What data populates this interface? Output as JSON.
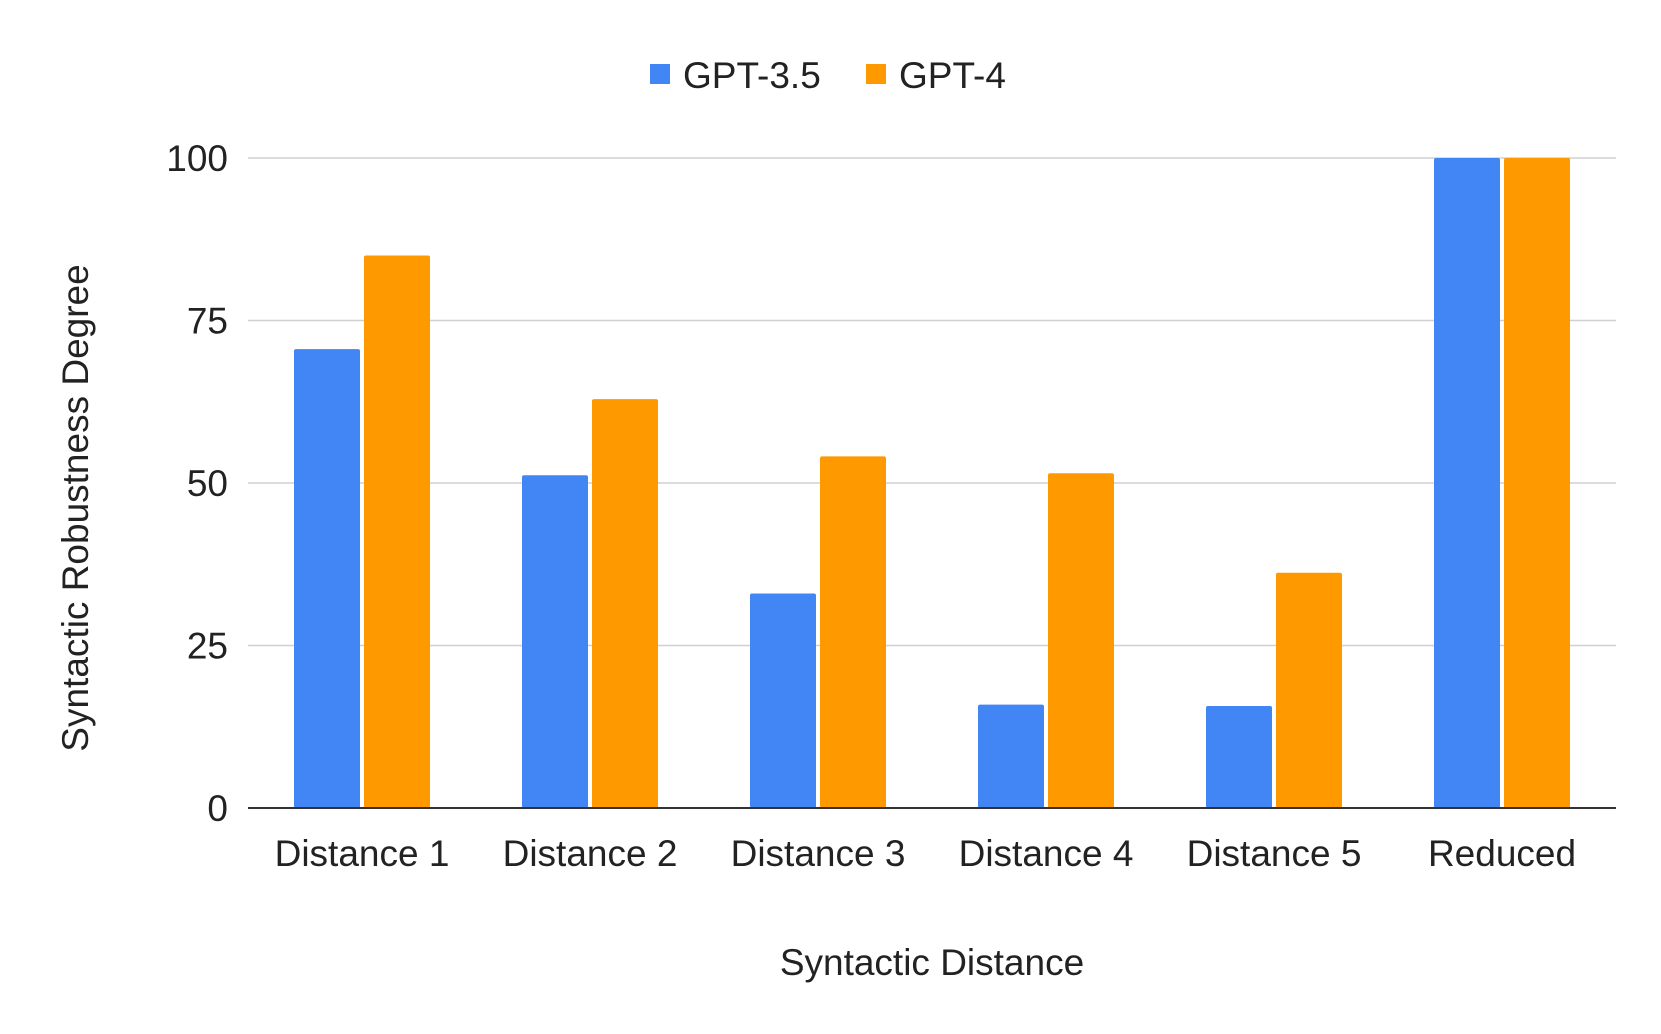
{
  "chart_data": {
    "type": "bar",
    "categories": [
      "Distance 1",
      "Distance 2",
      "Distance 3",
      "Distance 4",
      "Distance 5",
      "Reduced"
    ],
    "series": [
      {
        "name": "GPT-3.5",
        "color": "#4285f4",
        "values": [
          70.6,
          51.2,
          33.0,
          15.9,
          15.7,
          100
        ]
      },
      {
        "name": "GPT-4",
        "color": "#ff9900",
        "values": [
          85.0,
          62.9,
          54.1,
          51.5,
          36.2,
          100
        ]
      }
    ],
    "title": "",
    "xlabel": "Syntactic Distance",
    "ylabel": "Syntactic Robustness Degree",
    "ylim": [
      0,
      100
    ],
    "yticks": [
      "0",
      "25",
      "50",
      "75",
      "100"
    ],
    "grid": true,
    "legend_position": "top-center"
  }
}
